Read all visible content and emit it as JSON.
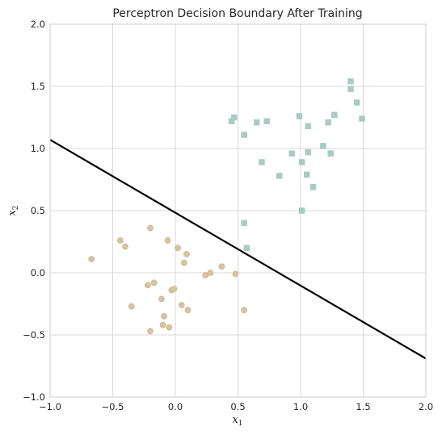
{
  "chart_data": {
    "type": "scatter",
    "title": "Perceptron Decision Boundary After Training",
    "xlabel": {
      "base": "x",
      "sub": "1"
    },
    "ylabel": {
      "base": "x",
      "sub": "2"
    },
    "xlim": [
      -1.0,
      2.0
    ],
    "ylim": [
      -1.0,
      2.0
    ],
    "xticks": [
      -1.0,
      -0.5,
      0.0,
      0.5,
      1.0,
      1.5,
      2.0
    ],
    "yticks": [
      -1.0,
      -0.5,
      0.0,
      0.5,
      1.0,
      1.5,
      2.0
    ],
    "xtick_labels": [
      "−1.0",
      "−0.5",
      "0.0",
      "0.5",
      "1.0",
      "1.5",
      "2.0"
    ],
    "ytick_labels": [
      "−1.0",
      "−0.5",
      "0.0",
      "0.5",
      "1.0",
      "1.5",
      "2.0"
    ],
    "grid": true,
    "legend": null,
    "colors": {
      "class0": "#d6c4a0",
      "class1": "#a9cbc4",
      "boundary": "#000000",
      "grid": "#d9d9d9",
      "frame": "#cccccc"
    },
    "series": [
      {
        "marker": "circle",
        "color": "#d6c4a0",
        "points": [
          [
            -0.67,
            0.11
          ],
          [
            -0.44,
            0.26
          ],
          [
            -0.4,
            0.21
          ],
          [
            -0.2,
            0.36
          ],
          [
            -0.06,
            0.26
          ],
          [
            0.02,
            0.2
          ],
          [
            0.09,
            0.15
          ],
          [
            0.07,
            0.08
          ],
          [
            0.37,
            0.05
          ],
          [
            0.28,
            0.0
          ],
          [
            0.24,
            -0.02
          ],
          [
            0.48,
            -0.01
          ],
          [
            -0.17,
            -0.08
          ],
          [
            -0.22,
            -0.1
          ],
          [
            -0.03,
            -0.14
          ],
          [
            -0.01,
            -0.13
          ],
          [
            -0.11,
            -0.21
          ],
          [
            0.05,
            -0.26
          ],
          [
            0.1,
            -0.3
          ],
          [
            -0.35,
            -0.27
          ],
          [
            -0.09,
            -0.35
          ],
          [
            -0.1,
            -0.42
          ],
          [
            -0.05,
            -0.44
          ],
          [
            -0.2,
            -0.47
          ],
          [
            0.55,
            -0.3
          ]
        ]
      },
      {
        "marker": "square",
        "color": "#a9cbc4",
        "points": [
          [
            1.4,
            1.54
          ],
          [
            1.4,
            1.48
          ],
          [
            1.45,
            1.37
          ],
          [
            1.49,
            1.24
          ],
          [
            1.27,
            1.27
          ],
          [
            0.99,
            1.26
          ],
          [
            1.22,
            1.21
          ],
          [
            1.06,
            1.18
          ],
          [
            0.47,
            1.25
          ],
          [
            0.45,
            1.22
          ],
          [
            0.65,
            1.21
          ],
          [
            0.73,
            1.22
          ],
          [
            0.55,
            1.11
          ],
          [
            1.18,
            1.02
          ],
          [
            1.06,
            0.97
          ],
          [
            1.24,
            0.96
          ],
          [
            0.93,
            0.96
          ],
          [
            1.01,
            0.89
          ],
          [
            0.69,
            0.89
          ],
          [
            0.83,
            0.78
          ],
          [
            1.05,
            0.79
          ],
          [
            1.1,
            0.69
          ],
          [
            1.01,
            0.5
          ],
          [
            0.55,
            0.4
          ],
          [
            0.57,
            0.2
          ]
        ]
      }
    ],
    "decision_boundary": {
      "type": "line",
      "x": [
        -1.0,
        2.0
      ],
      "y": [
        1.07,
        -0.69
      ]
    }
  }
}
